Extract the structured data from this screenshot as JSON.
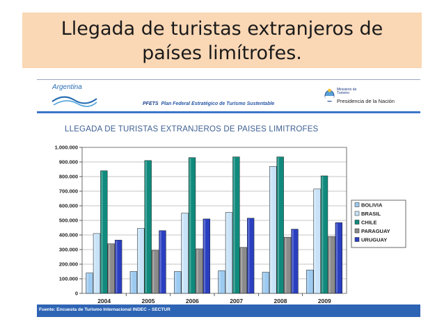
{
  "slide": {
    "title_line1": "Llegada de turistas extranjeros de",
    "title_line2": "países limítrofes."
  },
  "header": {
    "brand": "Argentina",
    "pfets_acronym": "PFETS",
    "pfets_name": "Plan Federal Estratégico de Turismo Sustentable",
    "ministry_line1": "Ministerio de",
    "ministry_line2": "Turismo",
    "presidencia": "Presidencia de la Nación"
  },
  "footer": {
    "source": "Fuente: Encuesta de Turismo Internacional INDEC – SECTUR"
  },
  "chart_data": {
    "type": "bar",
    "title": "LLEGADA DE TURISTAS EXTRANJEROS DE PAISES LIMITROFES",
    "categories": [
      "2004",
      "2005",
      "2006",
      "2007",
      "2008",
      "2009"
    ],
    "ylim": [
      0,
      1000000
    ],
    "yticks": [
      "0",
      "100.000",
      "200.000",
      "300.000",
      "400.000",
      "500.000",
      "600.000",
      "700.000",
      "800.000",
      "900.000",
      "1.000.000"
    ],
    "grid": true,
    "legend": "right",
    "series": [
      {
        "name": "BOLIVIA",
        "color": "#9ccaf0",
        "values": [
          140000,
          150000,
          150000,
          155000,
          145000,
          160000
        ]
      },
      {
        "name": "BRASIL",
        "color": "#c8e3f7",
        "values": [
          410000,
          445000,
          550000,
          555000,
          870000,
          715000
        ]
      },
      {
        "name": "CHILE",
        "color": "#0f8a7c",
        "values": [
          840000,
          910000,
          930000,
          935000,
          935000,
          805000
        ]
      },
      {
        "name": "PARAGUAY",
        "color": "#8c8c8c",
        "values": [
          340000,
          295000,
          305000,
          315000,
          385000,
          390000
        ]
      },
      {
        "name": "URUGUAY",
        "color": "#2a3fc0",
        "values": [
          365000,
          430000,
          510000,
          515000,
          440000,
          485000
        ]
      }
    ]
  }
}
